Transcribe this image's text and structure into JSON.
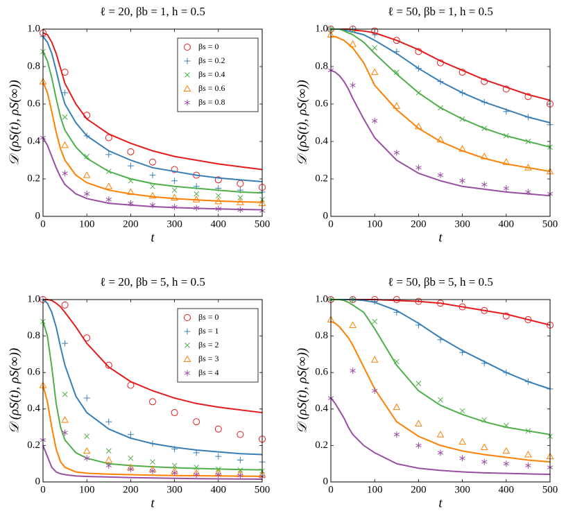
{
  "chart_data": [
    {
      "type": "line",
      "title": "ℓ = 20, βb = 1, h = 0.5",
      "xlabel": "t",
      "ylabel": "𝒟 (ρS(t), ρS(∞))",
      "xlim": [
        0,
        500
      ],
      "ylim": [
        0,
        1
      ],
      "xticks": [
        0,
        100,
        200,
        300,
        400,
        500
      ],
      "yticks": [
        0,
        0.2,
        0.4,
        0.6,
        0.8,
        {
          "value": 1,
          "label": "1.0"
        }
      ],
      "legend": "upper right",
      "x": [
        0,
        50,
        100,
        150,
        200,
        250,
        300,
        350,
        400,
        450,
        500
      ],
      "line_x": [
        0,
        10,
        20,
        30,
        40,
        50,
        75,
        100,
        150,
        200,
        250,
        300,
        350,
        400,
        450,
        500
      ],
      "series": [
        {
          "name": "βs = 0",
          "color": "#e41a1c",
          "marker": "circle",
          "values": [
            0.98,
            0.77,
            0.54,
            0.42,
            0.345,
            0.29,
            0.25,
            0.22,
            0.195,
            0.175,
            0.155
          ],
          "line_values": [
            0.98,
            0.97,
            0.93,
            0.87,
            0.79,
            0.71,
            0.6,
            0.52,
            0.44,
            0.39,
            0.35,
            0.32,
            0.3,
            0.28,
            0.265,
            0.25
          ]
        },
        {
          "name": "βs = 0.2",
          "color": "#377eb8",
          "marker": "plus",
          "values": [
            0.96,
            0.66,
            0.43,
            0.33,
            0.27,
            0.22,
            0.19,
            0.16,
            0.15,
            0.14,
            0.13
          ],
          "line_values": [
            0.96,
            0.93,
            0.87,
            0.78,
            0.68,
            0.6,
            0.5,
            0.43,
            0.35,
            0.3,
            0.26,
            0.24,
            0.22,
            0.205,
            0.195,
            0.185
          ]
        },
        {
          "name": "βs = 0.4",
          "color": "#4daf4a",
          "marker": "x",
          "values": [
            0.88,
            0.53,
            0.32,
            0.24,
            0.19,
            0.16,
            0.14,
            0.12,
            0.11,
            0.1,
            0.09
          ],
          "line_values": [
            0.88,
            0.83,
            0.74,
            0.63,
            0.53,
            0.46,
            0.37,
            0.31,
            0.24,
            0.2,
            0.175,
            0.16,
            0.15,
            0.14,
            0.13,
            0.125
          ]
        },
        {
          "name": "βs = 0.6",
          "color": "#ff7f00",
          "marker": "triangle",
          "values": [
            0.72,
            0.38,
            0.22,
            0.16,
            0.13,
            0.11,
            0.1,
            0.09,
            0.08,
            0.075,
            0.07
          ],
          "line_values": [
            0.72,
            0.66,
            0.56,
            0.45,
            0.36,
            0.3,
            0.22,
            0.18,
            0.14,
            0.12,
            0.105,
            0.095,
            0.088,
            0.082,
            0.078,
            0.075
          ]
        },
        {
          "name": "βs = 0.8",
          "color": "#984ea3",
          "marker": "star",
          "values": [
            0.42,
            0.23,
            0.12,
            0.09,
            0.07,
            0.06,
            0.05,
            0.045,
            0.04,
            0.035,
            0.03
          ],
          "line_values": [
            0.42,
            0.38,
            0.32,
            0.26,
            0.21,
            0.17,
            0.12,
            0.095,
            0.07,
            0.06,
            0.052,
            0.047,
            0.043,
            0.04,
            0.037,
            0.035
          ]
        }
      ]
    },
    {
      "type": "line",
      "title": "ℓ = 50, βb = 1, h = 0.5",
      "xlabel": "t",
      "ylabel": "𝒟 (ρS(t), ρS(∞))",
      "xlim": [
        0,
        500
      ],
      "ylim": [
        0,
        1
      ],
      "xticks": [
        0,
        100,
        200,
        300,
        400,
        500
      ],
      "yticks": [
        0,
        0.2,
        0.4,
        0.6,
        0.8,
        {
          "value": 1,
          "label": "1.0"
        }
      ],
      "x": [
        0,
        50,
        100,
        150,
        200,
        250,
        300,
        350,
        400,
        450,
        500
      ],
      "line_x": [
        0,
        10,
        20,
        30,
        40,
        50,
        75,
        100,
        150,
        200,
        250,
        300,
        350,
        400,
        450,
        500
      ],
      "series": [
        {
          "color": "#e41a1c",
          "marker": "circle",
          "values": [
            1,
            1,
            0.99,
            0.94,
            0.88,
            0.82,
            0.77,
            0.72,
            0.68,
            0.64,
            0.6
          ],
          "line_values": [
            1,
            1,
            1,
            1,
            1,
            0.995,
            0.99,
            0.98,
            0.94,
            0.89,
            0.83,
            0.78,
            0.73,
            0.69,
            0.65,
            0.62
          ]
        },
        {
          "color": "#377eb8",
          "marker": "plus",
          "values": [
            1,
            1,
            0.97,
            0.88,
            0.79,
            0.72,
            0.66,
            0.61,
            0.56,
            0.53,
            0.49
          ],
          "line_values": [
            1,
            1,
            1,
            0.995,
            0.99,
            0.985,
            0.97,
            0.94,
            0.87,
            0.79,
            0.72,
            0.66,
            0.61,
            0.57,
            0.53,
            0.5
          ]
        },
        {
          "color": "#4daf4a",
          "marker": "x",
          "values": [
            1,
            0.99,
            0.9,
            0.77,
            0.66,
            0.58,
            0.52,
            0.47,
            0.43,
            0.4,
            0.37
          ],
          "line_values": [
            1,
            1,
            1,
            0.99,
            0.98,
            0.97,
            0.93,
            0.87,
            0.76,
            0.66,
            0.58,
            0.52,
            0.47,
            0.43,
            0.4,
            0.37
          ]
        },
        {
          "color": "#ff7f00",
          "marker": "triangle",
          "values": [
            0.97,
            0.92,
            0.77,
            0.59,
            0.48,
            0.41,
            0.36,
            0.32,
            0.29,
            0.26,
            0.24
          ],
          "line_values": [
            0.96,
            0.96,
            0.95,
            0.94,
            0.92,
            0.9,
            0.82,
            0.7,
            0.57,
            0.47,
            0.4,
            0.35,
            0.31,
            0.28,
            0.26,
            0.24
          ]
        },
        {
          "color": "#984ea3",
          "marker": "star",
          "values": [
            0.78,
            0.7,
            0.51,
            0.34,
            0.26,
            0.22,
            0.19,
            0.17,
            0.15,
            0.13,
            0.12
          ],
          "line_values": [
            0.78,
            0.77,
            0.75,
            0.72,
            0.68,
            0.63,
            0.52,
            0.42,
            0.3,
            0.23,
            0.19,
            0.16,
            0.145,
            0.13,
            0.12,
            0.11
          ]
        }
      ]
    },
    {
      "type": "line",
      "title": "ℓ = 20, βb = 5, h = 0.5",
      "xlabel": "t",
      "ylabel": "𝒟 (ρS(t), ρS(∞))",
      "xlim": [
        0,
        500
      ],
      "ylim": [
        0,
        1
      ],
      "xticks": [
        0,
        100,
        200,
        300,
        400,
        500
      ],
      "yticks": [
        0,
        0.2,
        0.4,
        0.6,
        0.8,
        {
          "value": 1,
          "label": "1.0"
        }
      ],
      "legend": "upper right",
      "x": [
        0,
        50,
        100,
        150,
        200,
        250,
        300,
        350,
        400,
        450,
        500
      ],
      "line_x": [
        0,
        10,
        20,
        30,
        40,
        50,
        75,
        100,
        150,
        200,
        250,
        300,
        350,
        400,
        450,
        500
      ],
      "series": [
        {
          "name": "βs = 0",
          "color": "#e41a1c",
          "marker": "circle",
          "values": [
            1,
            0.97,
            0.79,
            0.64,
            0.53,
            0.44,
            0.38,
            0.33,
            0.29,
            0.26,
            0.235
          ],
          "line_values": [
            1,
            1,
            0.995,
            0.98,
            0.96,
            0.93,
            0.85,
            0.76,
            0.63,
            0.55,
            0.5,
            0.46,
            0.43,
            0.41,
            0.395,
            0.38
          ]
        },
        {
          "name": "βs = 1",
          "color": "#377eb8",
          "marker": "plus",
          "values": [
            1,
            0.76,
            0.46,
            0.33,
            0.26,
            0.21,
            0.18,
            0.16,
            0.14,
            0.12,
            0.11
          ],
          "line_values": [
            1,
            0.98,
            0.93,
            0.85,
            0.74,
            0.64,
            0.47,
            0.38,
            0.29,
            0.24,
            0.21,
            0.19,
            0.175,
            0.165,
            0.155,
            0.15
          ]
        },
        {
          "name": "βs = 2",
          "color": "#4daf4a",
          "marker": "x",
          "values": [
            0.88,
            0.48,
            0.25,
            0.17,
            0.13,
            0.11,
            0.09,
            0.08,
            0.07,
            0.065,
            0.06
          ],
          "line_values": [
            0.88,
            0.8,
            0.63,
            0.43,
            0.3,
            0.23,
            0.16,
            0.13,
            0.1,
            0.09,
            0.083,
            0.078,
            0.074,
            0.071,
            0.068,
            0.066
          ]
        },
        {
          "name": "βs = 3",
          "color": "#ff7f00",
          "marker": "triangle",
          "values": [
            0.53,
            0.34,
            0.17,
            0.12,
            0.08,
            0.07,
            0.06,
            0.05,
            0.05,
            0.045,
            0.04
          ],
          "line_values": [
            0.53,
            0.44,
            0.3,
            0.18,
            0.11,
            0.08,
            0.055,
            0.048,
            0.043,
            0.04,
            0.037,
            0.035,
            0.034,
            0.033,
            0.032,
            0.031
          ]
        },
        {
          "name": "βs = 4",
          "color": "#984ea3",
          "marker": "star",
          "values": [
            0.23,
            0.27,
            0.13,
            0.09,
            0.07,
            0.06,
            0.05,
            0.04,
            0.04,
            0.035,
            0.03
          ],
          "line_values": [
            0.2,
            0.14,
            0.08,
            0.055,
            0.045,
            0.04,
            0.033,
            0.03,
            0.027,
            0.024,
            0.022,
            0.02,
            0.018,
            0.017,
            0.016,
            0.015
          ]
        }
      ]
    },
    {
      "type": "line",
      "title": "ℓ = 50, βb = 5, h = 0.5",
      "xlabel": "t",
      "ylabel": "𝒟 (ρS(t), ρS(∞))",
      "xlim": [
        0,
        500
      ],
      "ylim": [
        0,
        1
      ],
      "xticks": [
        0,
        100,
        200,
        300,
        400,
        500
      ],
      "yticks": [
        0,
        0.2,
        0.4,
        0.6,
        0.8,
        {
          "value": 1,
          "label": "1.0"
        }
      ],
      "x": [
        0,
        50,
        100,
        150,
        200,
        250,
        300,
        350,
        400,
        450,
        500
      ],
      "line_x": [
        0,
        10,
        20,
        30,
        40,
        50,
        75,
        100,
        150,
        200,
        250,
        300,
        350,
        400,
        450,
        500
      ],
      "series": [
        {
          "color": "#e41a1c",
          "marker": "circle",
          "values": [
            1,
            1,
            1,
            1,
            0.99,
            0.98,
            0.96,
            0.94,
            0.91,
            0.89,
            0.86
          ],
          "line_values": [
            1,
            1,
            1,
            1,
            1,
            1,
            1,
            1,
            0.995,
            0.99,
            0.98,
            0.96,
            0.94,
            0.92,
            0.89,
            0.86
          ]
        },
        {
          "color": "#377eb8",
          "marker": "plus",
          "values": [
            1,
            1,
            0.99,
            0.93,
            0.86,
            0.78,
            0.71,
            0.65,
            0.6,
            0.55,
            0.51
          ],
          "line_values": [
            1,
            1,
            1,
            1,
            1,
            1,
            0.995,
            0.985,
            0.94,
            0.87,
            0.79,
            0.72,
            0.66,
            0.6,
            0.55,
            0.51
          ]
        },
        {
          "color": "#4daf4a",
          "marker": "x",
          "values": [
            1,
            1,
            0.88,
            0.66,
            0.54,
            0.45,
            0.39,
            0.34,
            0.31,
            0.28,
            0.25
          ],
          "line_values": [
            1,
            1,
            1,
            0.995,
            0.985,
            0.97,
            0.93,
            0.84,
            0.64,
            0.5,
            0.42,
            0.37,
            0.33,
            0.3,
            0.28,
            0.26
          ]
        },
        {
          "color": "#ff7f00",
          "marker": "triangle",
          "values": [
            0.89,
            0.86,
            0.67,
            0.41,
            0.32,
            0.26,
            0.22,
            0.19,
            0.17,
            0.15,
            0.14
          ],
          "line_values": [
            0.88,
            0.87,
            0.85,
            0.82,
            0.79,
            0.75,
            0.63,
            0.51,
            0.33,
            0.25,
            0.2,
            0.17,
            0.15,
            0.135,
            0.12,
            0.11
          ]
        },
        {
          "color": "#984ea3",
          "marker": "star",
          "values": [
            0.46,
            0.61,
            0.5,
            0.26,
            0.2,
            0.16,
            0.13,
            0.11,
            0.1,
            0.09,
            0.08
          ],
          "line_values": [
            0.46,
            0.43,
            0.39,
            0.35,
            0.3,
            0.26,
            0.2,
            0.16,
            0.1,
            0.075,
            0.063,
            0.055,
            0.05,
            0.047,
            0.044,
            0.042
          ]
        }
      ]
    }
  ]
}
